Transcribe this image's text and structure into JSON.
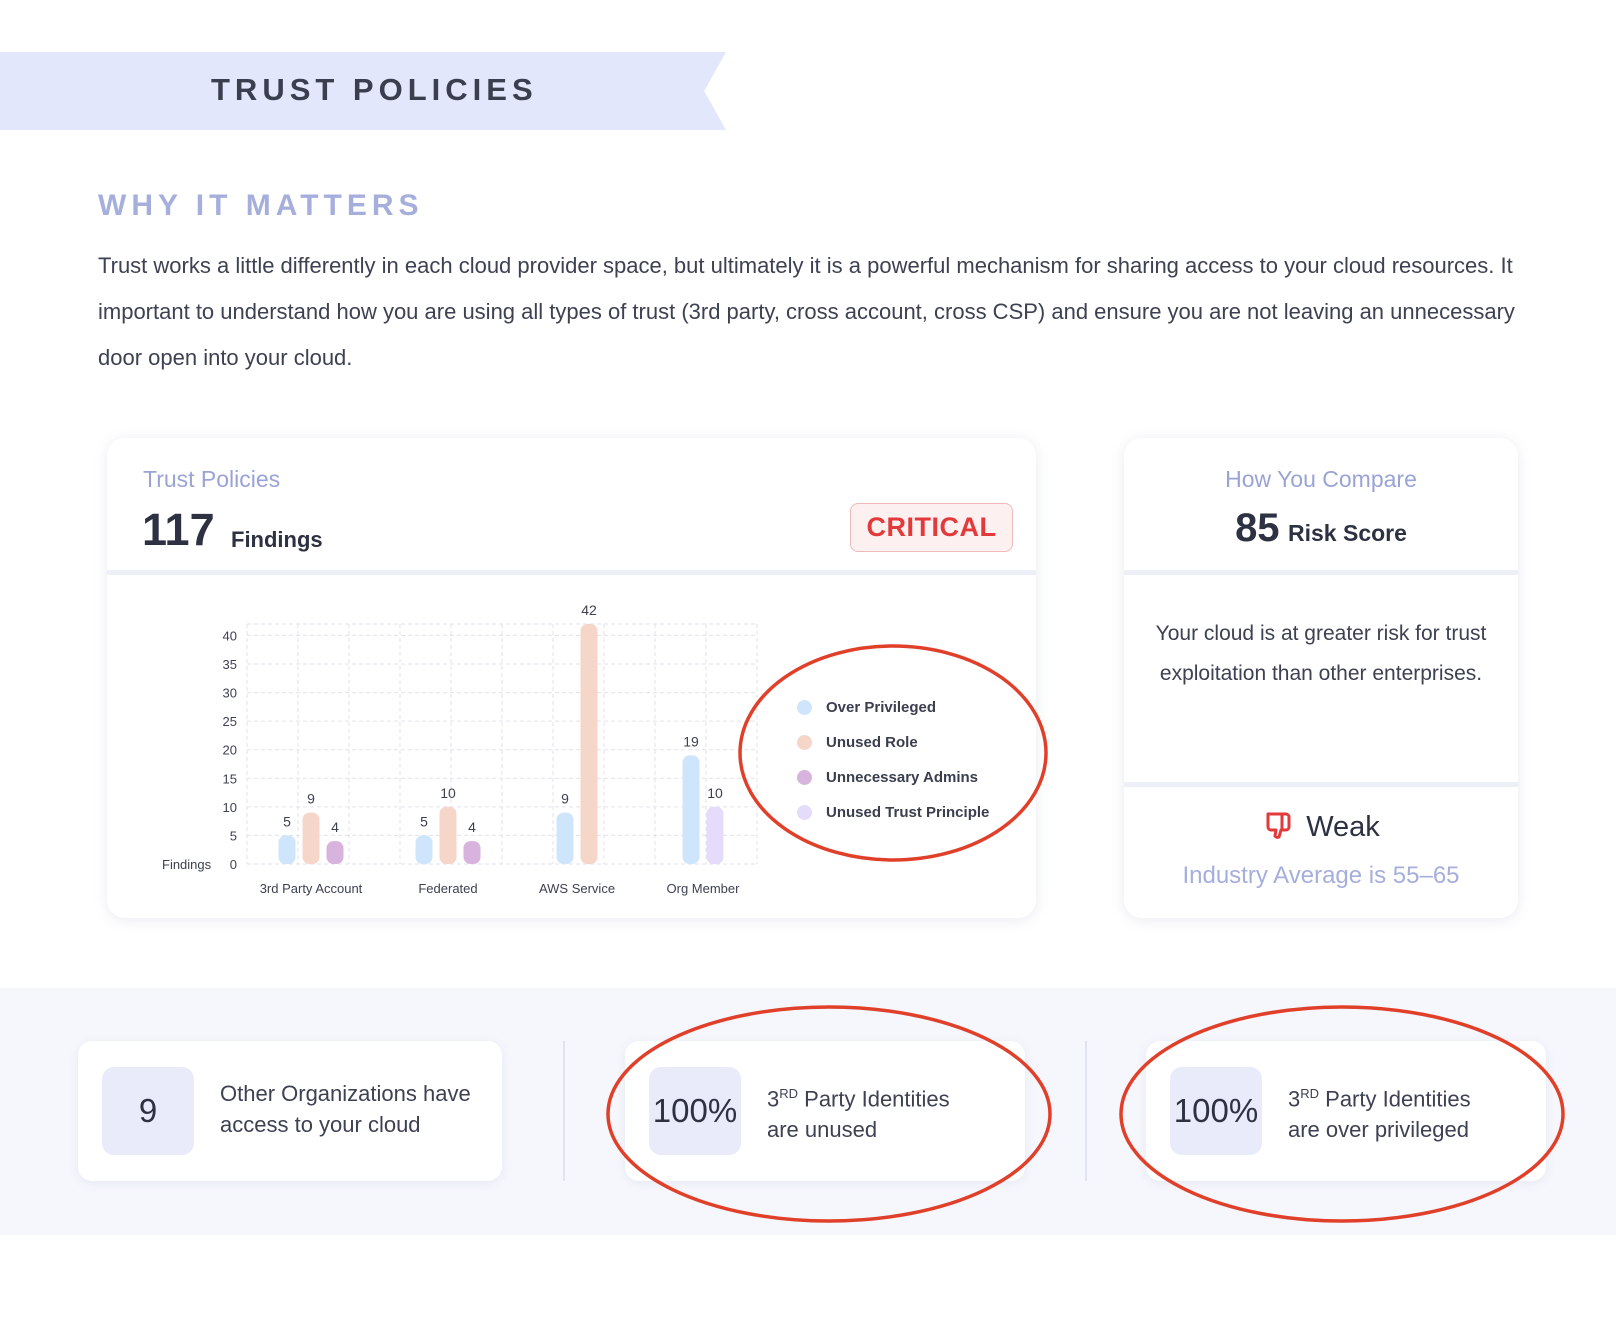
{
  "banner": {
    "title": "TRUST POLICIES"
  },
  "why": {
    "heading": "WHY IT MATTERS",
    "text": "Trust works a little differently in each cloud provider space, but ultimately it is a powerful mechanism for sharing access to your cloud resources. It important to understand how you are using all types of trust (3rd party, cross account, cross CSP) and ensure you are not leaving an unnecessary door open into your cloud."
  },
  "findings_card": {
    "kicker": "Trust Policies",
    "count": "117",
    "count_label": "Findings",
    "severity": "CRITICAL"
  },
  "chart_data": {
    "type": "bar",
    "categories": [
      "3rd Party Account",
      "Federated",
      "AWS Service",
      "Org Member"
    ],
    "series": [
      {
        "name": "Over Privileged",
        "values": [
          5,
          5,
          9,
          19
        ],
        "color": "#cfe5fb"
      },
      {
        "name": "Unused Role",
        "values": [
          9,
          10,
          42,
          null
        ],
        "color": "#f6d6c9"
      },
      {
        "name": "Unnecessary Admins",
        "values": [
          4,
          4,
          null,
          null
        ],
        "color": "#d8b3de"
      },
      {
        "name": "Unused Trust Principle",
        "values": [
          null,
          null,
          null,
          10
        ],
        "color": "#e4dcfa"
      }
    ],
    "ylabel": "Findings",
    "ylim": [
      0,
      42
    ],
    "yticks": [
      0,
      5,
      10,
      15,
      20,
      25,
      30,
      35,
      40
    ],
    "grid": true,
    "legend_position": "right"
  },
  "compare_card": {
    "kicker": "How You Compare",
    "score": "85",
    "score_label": "Risk Score",
    "description": "Your cloud is at greater risk for trust exploitation than other enterprises.",
    "verdict": "Weak",
    "verdict_icon": "thumbs-down-icon",
    "industry_average": "Industry Average is 55–65"
  },
  "stats": [
    {
      "value": "9",
      "label_line1": "Other Organizations have",
      "label_line2": "access to your cloud"
    },
    {
      "value": "100%",
      "label_sup_prefix": "3",
      "label_sup": "RD",
      "label_line1": " Party Identities",
      "label_line2": "are unused"
    },
    {
      "value": "100%",
      "label_sup_prefix": "3",
      "label_sup": "RD",
      "label_line1": " Party Identities",
      "label_line2": "are over privileged"
    }
  ],
  "colors": {
    "annotation": "#e0402a",
    "critical": "#e23a3a",
    "accent": "#a6aedc"
  }
}
